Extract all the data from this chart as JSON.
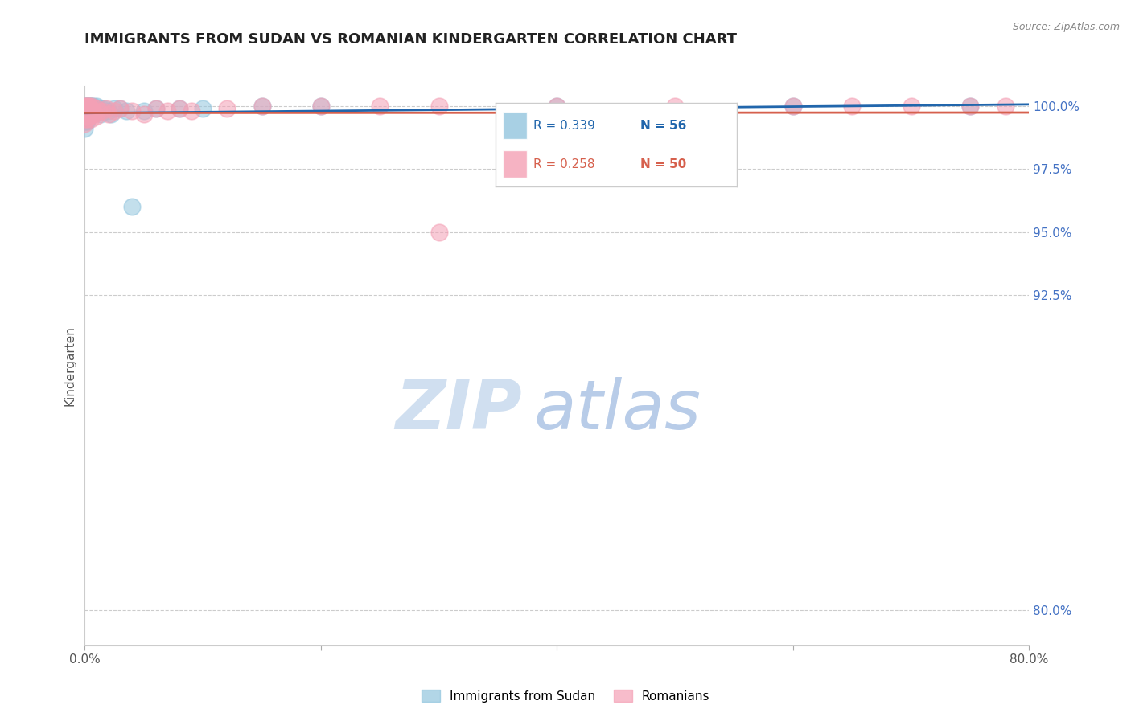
{
  "title": "IMMIGRANTS FROM SUDAN VS ROMANIAN KINDERGARTEN CORRELATION CHART",
  "source_text": "Source: ZipAtlas.com",
  "ylabel": "Kindergarten",
  "x_min": 0.0,
  "x_max": 0.8,
  "y_min": 0.786,
  "y_max": 1.008,
  "y_ticks_right": [
    1.0,
    0.975,
    0.95,
    0.925,
    0.8
  ],
  "y_tick_labels_right": [
    "100.0%",
    "97.5%",
    "95.0%",
    "92.5%",
    "80.0%"
  ],
  "legend_blue_label": "Immigrants from Sudan",
  "legend_pink_label": "Romanians",
  "r_blue": 0.339,
  "n_blue": 56,
  "r_pink": 0.258,
  "n_pink": 50,
  "blue_color": "#92c5de",
  "pink_color": "#f4a0b5",
  "blue_line_color": "#2166ac",
  "pink_line_color": "#d6604d",
  "watermark_zip": "ZIP",
  "watermark_atlas": "atlas",
  "watermark_color_zip": "#d0dff0",
  "watermark_color_atlas": "#b8cce8",
  "blue_x": [
    0.0,
    0.0,
    0.0,
    0.0,
    0.0,
    0.0,
    0.0,
    0.0,
    0.0,
    0.0,
    0.001,
    0.001,
    0.001,
    0.001,
    0.001,
    0.001,
    0.002,
    0.002,
    0.002,
    0.002,
    0.003,
    0.003,
    0.003,
    0.004,
    0.004,
    0.005,
    0.005,
    0.006,
    0.006,
    0.007,
    0.007,
    0.008,
    0.009,
    0.01,
    0.01,
    0.011,
    0.012,
    0.013,
    0.014,
    0.015,
    0.016,
    0.02,
    0.022,
    0.025,
    0.03,
    0.035,
    0.04,
    0.05,
    0.06,
    0.08,
    0.1,
    0.15,
    0.2,
    0.4,
    0.6,
    0.75
  ],
  "blue_y": [
    1.0,
    0.999,
    0.999,
    0.998,
    0.998,
    0.997,
    0.996,
    0.995,
    0.994,
    0.991,
    1.0,
    0.999,
    0.998,
    0.997,
    0.996,
    0.994,
    1.0,
    0.999,
    0.997,
    0.994,
    1.0,
    0.999,
    0.996,
    1.0,
    0.998,
    1.0,
    0.997,
    1.0,
    0.998,
    1.0,
    0.998,
    0.999,
    0.998,
    1.0,
    0.998,
    0.999,
    0.998,
    0.997,
    0.999,
    0.998,
    0.999,
    0.998,
    0.997,
    0.999,
    0.999,
    0.998,
    0.96,
    0.998,
    0.999,
    0.999,
    0.999,
    1.0,
    1.0,
    1.0,
    1.0,
    1.0
  ],
  "pink_x": [
    0.0,
    0.0,
    0.0,
    0.0,
    0.0,
    0.0,
    0.001,
    0.001,
    0.001,
    0.001,
    0.002,
    0.002,
    0.002,
    0.003,
    0.003,
    0.004,
    0.004,
    0.005,
    0.005,
    0.006,
    0.006,
    0.007,
    0.008,
    0.009,
    0.01,
    0.012,
    0.015,
    0.018,
    0.02,
    0.025,
    0.03,
    0.04,
    0.05,
    0.06,
    0.07,
    0.08,
    0.09,
    0.12,
    0.15,
    0.2,
    0.25,
    0.3,
    0.4,
    0.5,
    0.6,
    0.65,
    0.7,
    0.75,
    0.78,
    0.3
  ],
  "pink_y": [
    1.0,
    0.999,
    0.998,
    0.997,
    0.996,
    0.993,
    1.0,
    0.999,
    0.997,
    0.995,
    1.0,
    0.998,
    0.995,
    1.0,
    0.997,
    1.0,
    0.996,
    0.999,
    0.995,
    1.0,
    0.997,
    0.998,
    0.997,
    0.996,
    0.999,
    0.998,
    0.998,
    0.999,
    0.997,
    0.998,
    0.999,
    0.998,
    0.997,
    0.999,
    0.998,
    0.999,
    0.998,
    0.999,
    1.0,
    1.0,
    1.0,
    1.0,
    1.0,
    1.0,
    1.0,
    1.0,
    1.0,
    1.0,
    1.0,
    0.95
  ]
}
